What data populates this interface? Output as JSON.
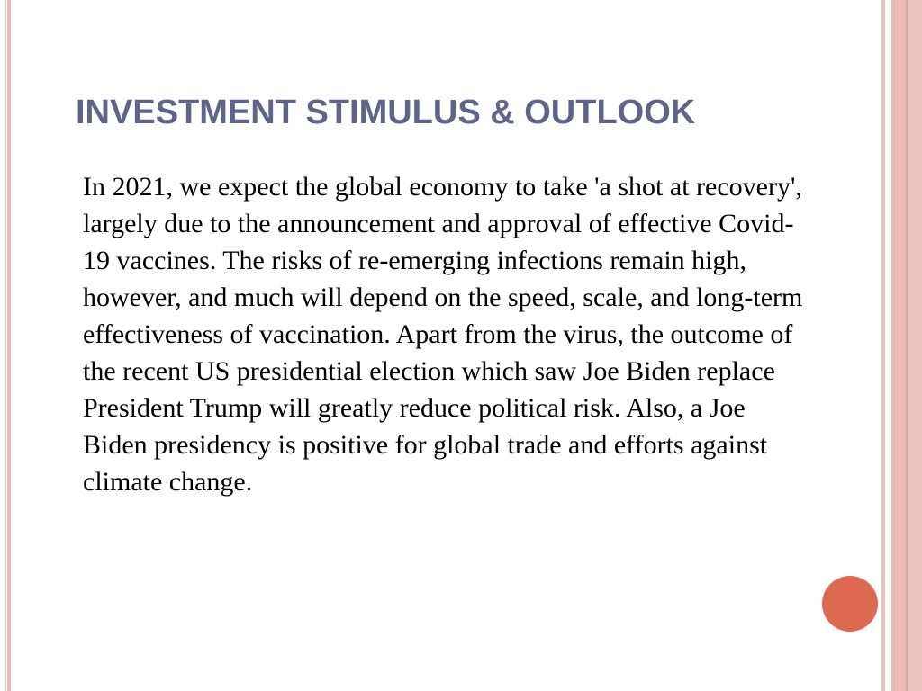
{
  "slide": {
    "title": "INVESTMENT STIMULUS & OUTLOOK",
    "body": "In 2021, we expect the global economy to take 'a shot at recovery', largely due to the announcement and approval of effective Covid-19 vaccines. The risks of re-emerging infections remain high, however, and much will depend on the speed, scale, and long-term effectiveness of vaccination. Apart from the virus, the outcome of the recent US presidential election which saw Joe Biden replace President Trump will greatly reduce political risk. Also, a Joe Biden presidency is positive for global trade and efforts against climate change."
  },
  "colors": {
    "title": "#5e6589",
    "accent_dot": "#dd6a50",
    "border_pink": "#e8c0bc",
    "border_line": "#d9685a"
  }
}
